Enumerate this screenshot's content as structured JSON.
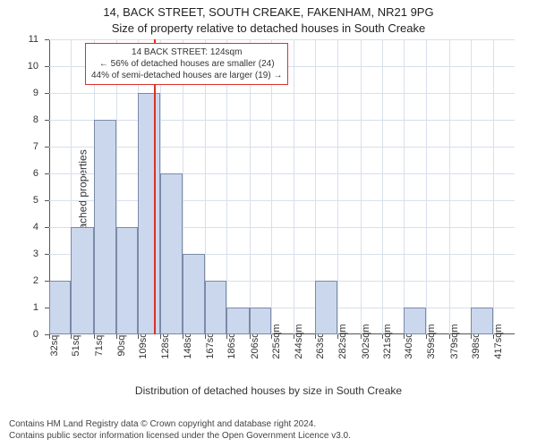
{
  "title_line1": "14, BACK STREET, SOUTH CREAKE, FAKENHAM, NR21 9PG",
  "title_line2": "Size of property relative to detached houses in South Creake",
  "y_axis_label": "Number of detached properties",
  "x_axis_label": "Distribution of detached houses by size in South Creake",
  "chart": {
    "type": "histogram",
    "ylim": [
      0,
      11
    ],
    "ytick_step": 1,
    "xlim": [
      32,
      436
    ],
    "xtick_step": 19.3,
    "x_unit": "sqm",
    "bar_fill": "#cbd7ec",
    "bar_border": "#7a8aa8",
    "grid_color": "#d8e0ec",
    "axis_color": "#555555",
    "marker_color": "#d9322a",
    "marker_value": 124,
    "background": "#ffffff",
    "bars": [
      {
        "x0": 32,
        "x1": 51,
        "value": 2
      },
      {
        "x0": 51,
        "x1": 71,
        "value": 4
      },
      {
        "x0": 71,
        "x1": 90,
        "value": 8
      },
      {
        "x0": 90,
        "x1": 109,
        "value": 4
      },
      {
        "x0": 109,
        "x1": 128,
        "value": 9
      },
      {
        "x0": 128,
        "x1": 148,
        "value": 6
      },
      {
        "x0": 148,
        "x1": 167,
        "value": 3
      },
      {
        "x0": 167,
        "x1": 186,
        "value": 2
      },
      {
        "x0": 186,
        "x1": 206,
        "value": 1
      },
      {
        "x0": 206,
        "x1": 225,
        "value": 1
      },
      {
        "x0": 263,
        "x1": 282,
        "value": 2
      },
      {
        "x0": 340,
        "x1": 359,
        "value": 1
      },
      {
        "x0": 398,
        "x1": 417,
        "value": 1
      }
    ],
    "x_ticks": [
      32,
      51,
      71,
      90,
      109,
      128,
      148,
      167,
      186,
      206,
      225,
      244,
      263,
      282,
      302,
      321,
      340,
      359,
      379,
      398,
      417
    ]
  },
  "annotation": {
    "line1": "14 BACK STREET: 124sqm",
    "line2": "← 56% of detached houses are smaller (24)",
    "line3": "44% of semi-detached houses are larger (19) →"
  },
  "footer_line1": "Contains HM Land Registry data © Crown copyright and database right 2024.",
  "footer_line2": "Contains public sector information licensed under the Open Government Licence v3.0."
}
